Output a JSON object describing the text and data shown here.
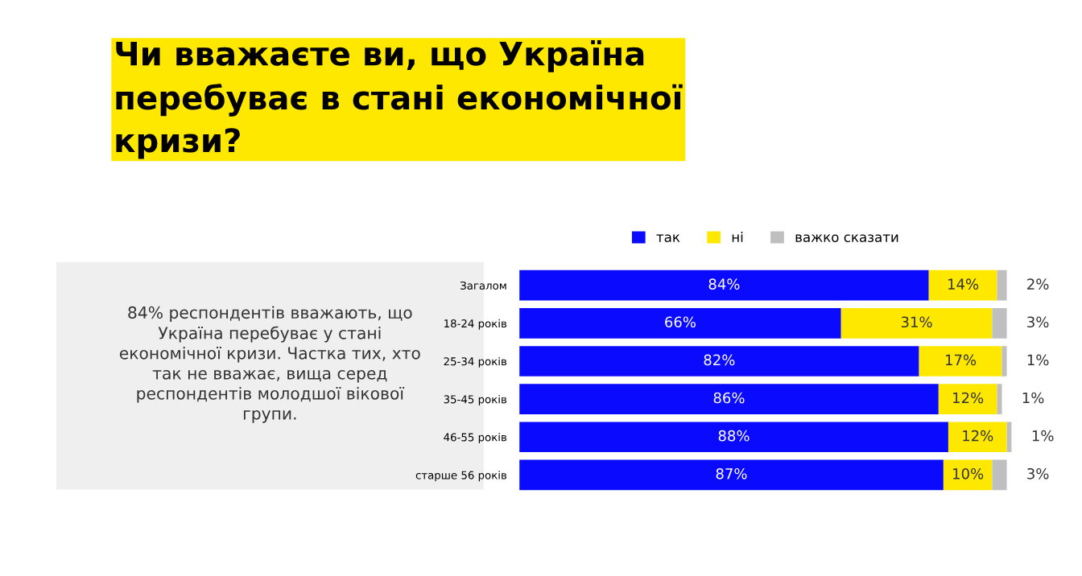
{
  "chart_data": {
    "type": "bar",
    "orientation": "horizontal",
    "stacked": true,
    "title": "Чи вважаєте ви, що Україна перебуває в стані економічної кризи?",
    "categories": [
      "Загалом",
      "18-24 років",
      "25-34 років",
      "35-45 років",
      "46-55 років",
      "старше 56 років"
    ],
    "series": [
      {
        "name": "так",
        "color": "#0a0aff",
        "values": [
          84,
          66,
          82,
          86,
          88,
          87
        ],
        "value_labels": [
          "84%",
          "66%",
          "82%",
          "86%",
          "88%",
          "87%"
        ]
      },
      {
        "name": "ні",
        "color": "#ffe800",
        "values": [
          14,
          31,
          17,
          12,
          12,
          10
        ],
        "value_labels": [
          "14%",
          "31%",
          "17%",
          "12%",
          "12%",
          "10%"
        ]
      },
      {
        "name": "важко сказати",
        "color": "#bfbfbf",
        "values": [
          2,
          3,
          1,
          1,
          1,
          3
        ],
        "value_labels": [
          "2%",
          "3%",
          "1%",
          "1%",
          "1%",
          "3%"
        ]
      }
    ],
    "legend": "top",
    "tick_labels": "y",
    "annotations": [
      "84% респондентів вважають, що Україна перебуває у стані економічної кризи. Частка тих, хто так не вважає, вища серед респондентів молодшої вікової групи."
    ]
  }
}
